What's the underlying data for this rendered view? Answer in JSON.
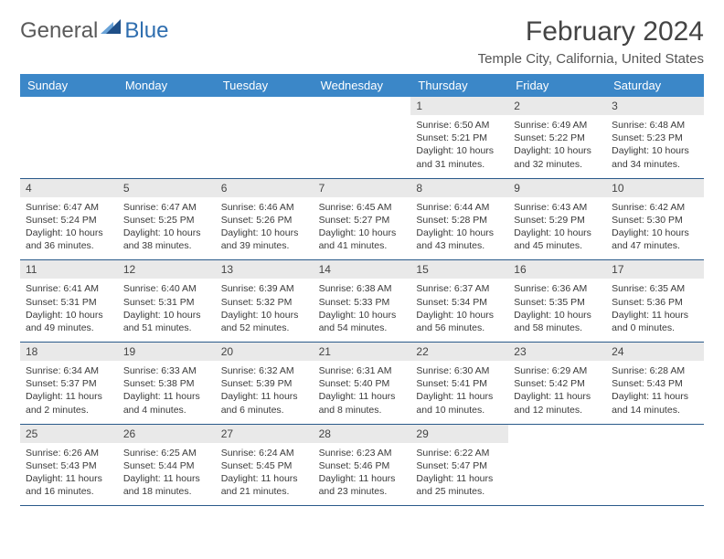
{
  "logo": {
    "word1": "General",
    "word2": "Blue"
  },
  "title": "February 2024",
  "location": "Temple City, California, United States",
  "colors": {
    "header_bg": "#3b87c8",
    "header_text": "#ffffff",
    "date_bg": "#e9e9e9",
    "rule": "#2a5a8a",
    "logo_gray": "#5a5a5a",
    "logo_blue": "#2f6eaf",
    "triangle_light": "#6aa3d8",
    "triangle_dark": "#1f4f88"
  },
  "day_names": [
    "Sunday",
    "Monday",
    "Tuesday",
    "Wednesday",
    "Thursday",
    "Friday",
    "Saturday"
  ],
  "weeks": [
    [
      null,
      null,
      null,
      null,
      {
        "n": "1",
        "sunrise": "Sunrise: 6:50 AM",
        "sunset": "Sunset: 5:21 PM",
        "dl1": "Daylight: 10 hours",
        "dl2": "and 31 minutes."
      },
      {
        "n": "2",
        "sunrise": "Sunrise: 6:49 AM",
        "sunset": "Sunset: 5:22 PM",
        "dl1": "Daylight: 10 hours",
        "dl2": "and 32 minutes."
      },
      {
        "n": "3",
        "sunrise": "Sunrise: 6:48 AM",
        "sunset": "Sunset: 5:23 PM",
        "dl1": "Daylight: 10 hours",
        "dl2": "and 34 minutes."
      }
    ],
    [
      {
        "n": "4",
        "sunrise": "Sunrise: 6:47 AM",
        "sunset": "Sunset: 5:24 PM",
        "dl1": "Daylight: 10 hours",
        "dl2": "and 36 minutes."
      },
      {
        "n": "5",
        "sunrise": "Sunrise: 6:47 AM",
        "sunset": "Sunset: 5:25 PM",
        "dl1": "Daylight: 10 hours",
        "dl2": "and 38 minutes."
      },
      {
        "n": "6",
        "sunrise": "Sunrise: 6:46 AM",
        "sunset": "Sunset: 5:26 PM",
        "dl1": "Daylight: 10 hours",
        "dl2": "and 39 minutes."
      },
      {
        "n": "7",
        "sunrise": "Sunrise: 6:45 AM",
        "sunset": "Sunset: 5:27 PM",
        "dl1": "Daylight: 10 hours",
        "dl2": "and 41 minutes."
      },
      {
        "n": "8",
        "sunrise": "Sunrise: 6:44 AM",
        "sunset": "Sunset: 5:28 PM",
        "dl1": "Daylight: 10 hours",
        "dl2": "and 43 minutes."
      },
      {
        "n": "9",
        "sunrise": "Sunrise: 6:43 AM",
        "sunset": "Sunset: 5:29 PM",
        "dl1": "Daylight: 10 hours",
        "dl2": "and 45 minutes."
      },
      {
        "n": "10",
        "sunrise": "Sunrise: 6:42 AM",
        "sunset": "Sunset: 5:30 PM",
        "dl1": "Daylight: 10 hours",
        "dl2": "and 47 minutes."
      }
    ],
    [
      {
        "n": "11",
        "sunrise": "Sunrise: 6:41 AM",
        "sunset": "Sunset: 5:31 PM",
        "dl1": "Daylight: 10 hours",
        "dl2": "and 49 minutes."
      },
      {
        "n": "12",
        "sunrise": "Sunrise: 6:40 AM",
        "sunset": "Sunset: 5:31 PM",
        "dl1": "Daylight: 10 hours",
        "dl2": "and 51 minutes."
      },
      {
        "n": "13",
        "sunrise": "Sunrise: 6:39 AM",
        "sunset": "Sunset: 5:32 PM",
        "dl1": "Daylight: 10 hours",
        "dl2": "and 52 minutes."
      },
      {
        "n": "14",
        "sunrise": "Sunrise: 6:38 AM",
        "sunset": "Sunset: 5:33 PM",
        "dl1": "Daylight: 10 hours",
        "dl2": "and 54 minutes."
      },
      {
        "n": "15",
        "sunrise": "Sunrise: 6:37 AM",
        "sunset": "Sunset: 5:34 PM",
        "dl1": "Daylight: 10 hours",
        "dl2": "and 56 minutes."
      },
      {
        "n": "16",
        "sunrise": "Sunrise: 6:36 AM",
        "sunset": "Sunset: 5:35 PM",
        "dl1": "Daylight: 10 hours",
        "dl2": "and 58 minutes."
      },
      {
        "n": "17",
        "sunrise": "Sunrise: 6:35 AM",
        "sunset": "Sunset: 5:36 PM",
        "dl1": "Daylight: 11 hours",
        "dl2": "and 0 minutes."
      }
    ],
    [
      {
        "n": "18",
        "sunrise": "Sunrise: 6:34 AM",
        "sunset": "Sunset: 5:37 PM",
        "dl1": "Daylight: 11 hours",
        "dl2": "and 2 minutes."
      },
      {
        "n": "19",
        "sunrise": "Sunrise: 6:33 AM",
        "sunset": "Sunset: 5:38 PM",
        "dl1": "Daylight: 11 hours",
        "dl2": "and 4 minutes."
      },
      {
        "n": "20",
        "sunrise": "Sunrise: 6:32 AM",
        "sunset": "Sunset: 5:39 PM",
        "dl1": "Daylight: 11 hours",
        "dl2": "and 6 minutes."
      },
      {
        "n": "21",
        "sunrise": "Sunrise: 6:31 AM",
        "sunset": "Sunset: 5:40 PM",
        "dl1": "Daylight: 11 hours",
        "dl2": "and 8 minutes."
      },
      {
        "n": "22",
        "sunrise": "Sunrise: 6:30 AM",
        "sunset": "Sunset: 5:41 PM",
        "dl1": "Daylight: 11 hours",
        "dl2": "and 10 minutes."
      },
      {
        "n": "23",
        "sunrise": "Sunrise: 6:29 AM",
        "sunset": "Sunset: 5:42 PM",
        "dl1": "Daylight: 11 hours",
        "dl2": "and 12 minutes."
      },
      {
        "n": "24",
        "sunrise": "Sunrise: 6:28 AM",
        "sunset": "Sunset: 5:43 PM",
        "dl1": "Daylight: 11 hours",
        "dl2": "and 14 minutes."
      }
    ],
    [
      {
        "n": "25",
        "sunrise": "Sunrise: 6:26 AM",
        "sunset": "Sunset: 5:43 PM",
        "dl1": "Daylight: 11 hours",
        "dl2": "and 16 minutes."
      },
      {
        "n": "26",
        "sunrise": "Sunrise: 6:25 AM",
        "sunset": "Sunset: 5:44 PM",
        "dl1": "Daylight: 11 hours",
        "dl2": "and 18 minutes."
      },
      {
        "n": "27",
        "sunrise": "Sunrise: 6:24 AM",
        "sunset": "Sunset: 5:45 PM",
        "dl1": "Daylight: 11 hours",
        "dl2": "and 21 minutes."
      },
      {
        "n": "28",
        "sunrise": "Sunrise: 6:23 AM",
        "sunset": "Sunset: 5:46 PM",
        "dl1": "Daylight: 11 hours",
        "dl2": "and 23 minutes."
      },
      {
        "n": "29",
        "sunrise": "Sunrise: 6:22 AM",
        "sunset": "Sunset: 5:47 PM",
        "dl1": "Daylight: 11 hours",
        "dl2": "and 25 minutes."
      },
      null,
      null
    ]
  ]
}
